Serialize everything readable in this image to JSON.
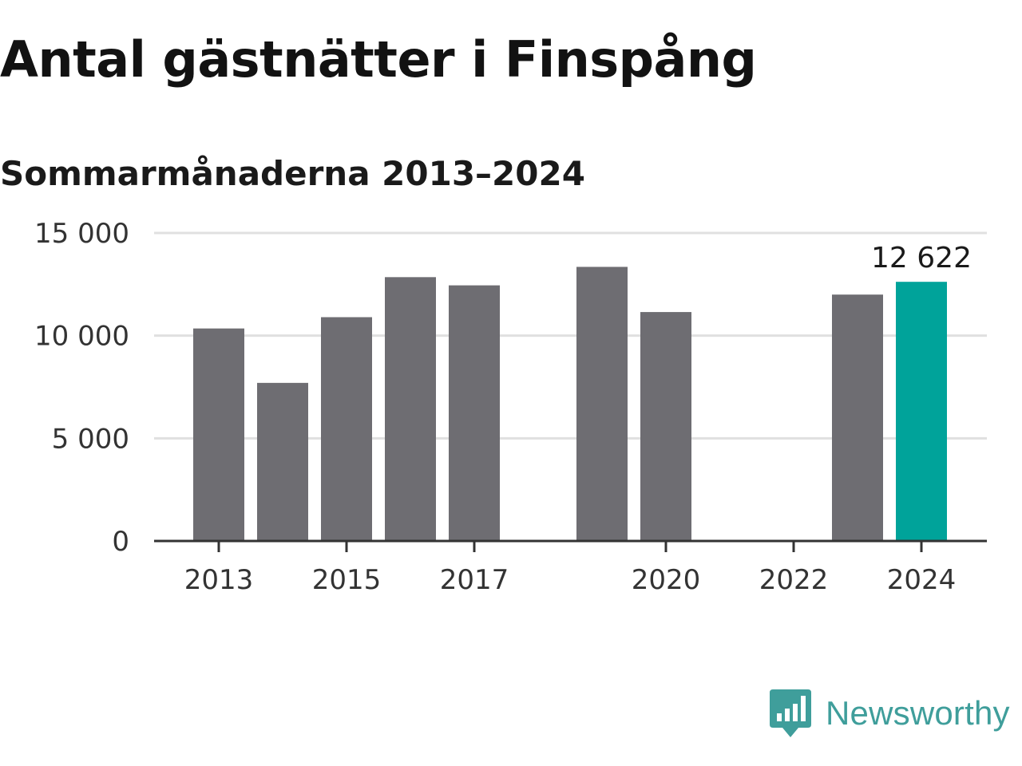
{
  "title": "Antal gästnätter i Finspång",
  "subtitle": "Sommarmånaderna 2013–2024",
  "brand": {
    "name": "Newsworthy",
    "icon": "newsworthy-logo-icon",
    "color": "#3f9e9b"
  },
  "colors": {
    "bar": "#6e6d72",
    "highlight": "#00a39a",
    "grid": "#e0e0e0",
    "axis": "#333333"
  },
  "chart_data": {
    "type": "bar",
    "categories": [
      "2013",
      "2014",
      "2015",
      "2016",
      "2017",
      "2018",
      "2019",
      "2020",
      "2021",
      "2022",
      "2023",
      "2024"
    ],
    "values": [
      10350,
      7700,
      10900,
      12850,
      12450,
      null,
      13350,
      11150,
      null,
      null,
      12000,
      12622
    ],
    "highlight_category": "2024",
    "data_labels": [
      {
        "category": "2024",
        "text": "12 622"
      }
    ],
    "x_tick_labels": [
      "2013",
      "2015",
      "2017",
      "2020",
      "2022",
      "2024"
    ],
    "y_ticks": [
      0,
      5000,
      10000,
      15000
    ],
    "y_tick_labels": [
      "0",
      "5 000",
      "10 000",
      "15 000"
    ],
    "ylim": [
      0,
      15000
    ],
    "grid": true,
    "legend": "none",
    "xlabel": "",
    "ylabel": ""
  }
}
